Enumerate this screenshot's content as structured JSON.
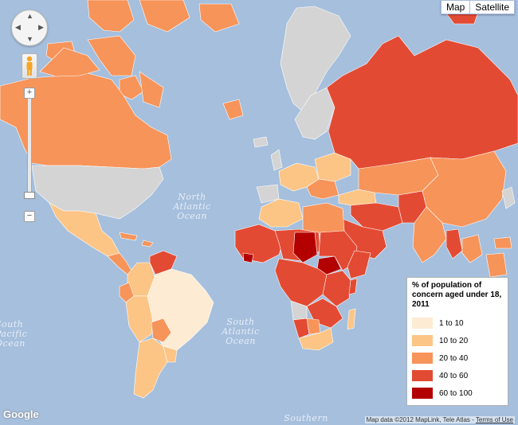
{
  "map_type": {
    "map_label": "Map",
    "satellite_label": "Satellite",
    "selected": "Map"
  },
  "controls": {
    "zoom_in_label": "+",
    "zoom_out_label": "−",
    "zoom_out2_label": "−"
  },
  "oceans": {
    "north_atlantic": [
      "North",
      "Atlantic",
      "Ocean"
    ],
    "south_atlantic": [
      "South",
      "Atlantic",
      "Ocean"
    ],
    "south_pacific": [
      "South",
      "Pacific",
      "Ocean"
    ],
    "southern": "Southern"
  },
  "legend": {
    "title": "% of population of concern aged under 18, 2011",
    "items": [
      {
        "label": "1 to 10",
        "color": "#fdebd3"
      },
      {
        "label": "10 to 20",
        "color": "#fcc586"
      },
      {
        "label": "20 to 40",
        "color": "#f7945a"
      },
      {
        "label": "40 to 60",
        "color": "#e34a33"
      },
      {
        "label": "60 to 100",
        "color": "#b30000"
      }
    ]
  },
  "colors": {
    "ocean": "#a5bfdd",
    "no_data": "#d4d4d4"
  },
  "attribution": {
    "logo": "Google",
    "map_data": "Map data ©2012 MapLink, Tele Atlas - ",
    "terms": "Terms of Use"
  }
}
